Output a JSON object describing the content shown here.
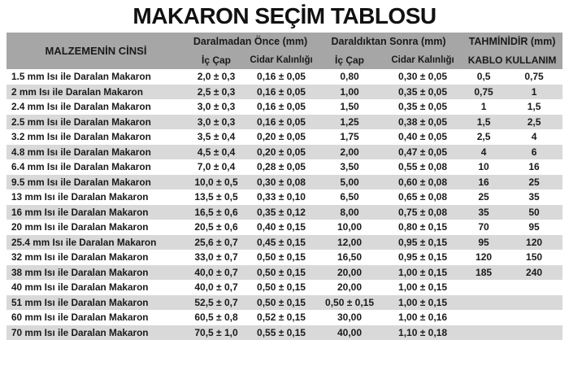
{
  "title": "MAKARON SEÇİM TABLOSU",
  "colors": {
    "header_bg": "#a6a6a6",
    "stripe_bg": "#d9d9d9",
    "flag_green": "#2e7d32",
    "text": "#1a1a1a"
  },
  "table": {
    "header": {
      "material": "MALZEMENİN CİNSİ",
      "group_before": "Daralmadan Önce (mm)",
      "group_after": "Daraldıktan Sonra (mm)",
      "group_estimate": "TAHMİNİDİR (mm)",
      "ic_cap_before": "İç Çap",
      "cidar_before": "Cidar Kalınlığı",
      "ic_cap_after": "İç Çap",
      "cidar_after": "Cidar Kalınlığı",
      "kablo": "KABLO KULLANIM"
    },
    "rows": [
      {
        "material": "1.5 mm Isı ile Daralan Makaron",
        "ic_cap_once": "2,0 ± 0,3",
        "cidar_once": "0,16 ± 0,05",
        "ic_cap_sonra": "0,80",
        "cidar_sonra": "0,30 ± 0,05",
        "kablo_min": "0,5",
        "kablo_max": "0,75",
        "error_flag": true
      },
      {
        "material": "2 mm Isı ile Daralan Makaron",
        "ic_cap_once": "2,5 ± 0,3",
        "cidar_once": "0,16 ± 0,05",
        "ic_cap_sonra": "1,00",
        "cidar_sonra": "0,35 ± 0,05",
        "kablo_min": "0,75",
        "kablo_max": "1",
        "error_flag": true
      },
      {
        "material": "2.4 mm Isı ile Daralan Makaron",
        "ic_cap_once": "3,0 ± 0,3",
        "cidar_once": "0,16 ± 0,05",
        "ic_cap_sonra": "1,50",
        "cidar_sonra": "0,35 ± 0,05",
        "kablo_min": "1",
        "kablo_max": "1,5",
        "error_flag": true
      },
      {
        "material": "2.5 mm Isı ile Daralan Makaron",
        "ic_cap_once": "3,0 ± 0,3",
        "cidar_once": "0,16 ± 0,05",
        "ic_cap_sonra": "1,25",
        "cidar_sonra": "0,38 ± 0,05",
        "kablo_min": "1,5",
        "kablo_max": "2,5",
        "error_flag": true
      },
      {
        "material": "3.2 mm Isı ile Daralan Makaron",
        "ic_cap_once": "3,5 ± 0,4",
        "cidar_once": "0,20 ± 0,05",
        "ic_cap_sonra": "1,75",
        "cidar_sonra": "0,40 ± 0,05",
        "kablo_min": "2,5",
        "kablo_max": "4",
        "error_flag": true
      },
      {
        "material": "4.8 mm Isı ile Daralan Makaron",
        "ic_cap_once": "4,5 ± 0,4",
        "cidar_once": "0,20 ± 0,05",
        "ic_cap_sonra": "2,00",
        "cidar_sonra": "0,47 ± 0,05",
        "kablo_min": "4",
        "kablo_max": "6",
        "error_flag": true
      },
      {
        "material": "6.4 mm Isı ile Daralan Makaron",
        "ic_cap_once": "7,0 ± 0,4",
        "cidar_once": "0,28 ± 0,05",
        "ic_cap_sonra": "3,50",
        "cidar_sonra": "0,55 ± 0,08",
        "kablo_min": "10",
        "kablo_max": "16",
        "error_flag": true
      },
      {
        "material": "9.5 mm Isı ile Daralan Makaron",
        "ic_cap_once": "10,0 ± 0,5",
        "cidar_once": "0,30 ± 0,08",
        "ic_cap_sonra": "5,00",
        "cidar_sonra": "0,60 ± 0,08",
        "kablo_min": "16",
        "kablo_max": "25",
        "error_flag": true
      },
      {
        "material": "13 mm Isı ile Daralan Makaron",
        "ic_cap_once": "13,5 ± 0,5",
        "cidar_once": "0,33 ± 0,10",
        "ic_cap_sonra": "6,50",
        "cidar_sonra": "0,65 ± 0,08",
        "kablo_min": "25",
        "kablo_max": "35",
        "error_flag": true
      },
      {
        "material": "16 mm Isı ile Daralan Makaron",
        "ic_cap_once": "16,5 ± 0,6",
        "cidar_once": "0,35 ± 0,12",
        "ic_cap_sonra": "8,00",
        "cidar_sonra": "0,75 ± 0,08",
        "kablo_min": "35",
        "kablo_max": "50",
        "error_flag": true
      },
      {
        "material": "20 mm Isı ile Daralan Makaron",
        "ic_cap_once": "20,5 ± 0,6",
        "cidar_once": "0,40 ± 0,15",
        "ic_cap_sonra": "10,00",
        "cidar_sonra": "0,80 ± 0,15",
        "kablo_min": "70",
        "kablo_max": "95",
        "error_flag": true
      },
      {
        "material": "25.4 mm Isı ile Daralan Makaron",
        "ic_cap_once": "25,6 ± 0,7",
        "cidar_once": "0,45 ± 0,15",
        "ic_cap_sonra": "12,00",
        "cidar_sonra": "0,95 ± 0,15",
        "kablo_min": "95",
        "kablo_max": "120",
        "error_flag": true
      },
      {
        "material": "32 mm Isı ile Daralan Makaron",
        "ic_cap_once": "33,0 ± 0,7",
        "cidar_once": "0,50 ± 0,15",
        "ic_cap_sonra": "16,50",
        "cidar_sonra": "0,95 ± 0,15",
        "kablo_min": "120",
        "kablo_max": "150",
        "error_flag": true
      },
      {
        "material": "38 mm Isı ile Daralan Makaron",
        "ic_cap_once": "40,0 ± 0,7",
        "cidar_once": "0,50 ± 0,15",
        "ic_cap_sonra": "20,00",
        "cidar_sonra": "1,00 ± 0,15",
        "kablo_min": "185",
        "kablo_max": "240",
        "error_flag": true
      },
      {
        "material": "40 mm Isı ile Daralan Makaron",
        "ic_cap_once": "40,0 ± 0,7",
        "cidar_once": "0,50 ± 0,15",
        "ic_cap_sonra": "20,00",
        "cidar_sonra": "1,00 ± 0,15",
        "kablo_min": "",
        "kablo_max": "",
        "error_flag": true
      },
      {
        "material": "51 mm Isı ile Daralan Makaron",
        "ic_cap_once": "52,5 ± 0,7",
        "cidar_once": "0,50 ± 0,15",
        "ic_cap_sonra": "0,50 ± 0,15",
        "cidar_sonra": "1,00 ± 0,15",
        "kablo_min": "",
        "kablo_max": "",
        "error_flag": false
      },
      {
        "material": "60 mm Isı ile Daralan Makaron",
        "ic_cap_once": "60,5 ± 0,8",
        "cidar_once": "0,52 ± 0,15",
        "ic_cap_sonra": "30,00",
        "cidar_sonra": "1,00 ± 0,16",
        "kablo_min": "",
        "kablo_max": "",
        "error_flag": true
      },
      {
        "material": "70 mm Isı ile Daralan Makaron",
        "ic_cap_once": "70,5 ± 1,0",
        "cidar_once": "0,55 ± 0,15",
        "ic_cap_sonra": "40,00",
        "cidar_sonra": "1,10 ± 0,18",
        "kablo_min": "",
        "kablo_max": "",
        "error_flag": true
      }
    ]
  }
}
